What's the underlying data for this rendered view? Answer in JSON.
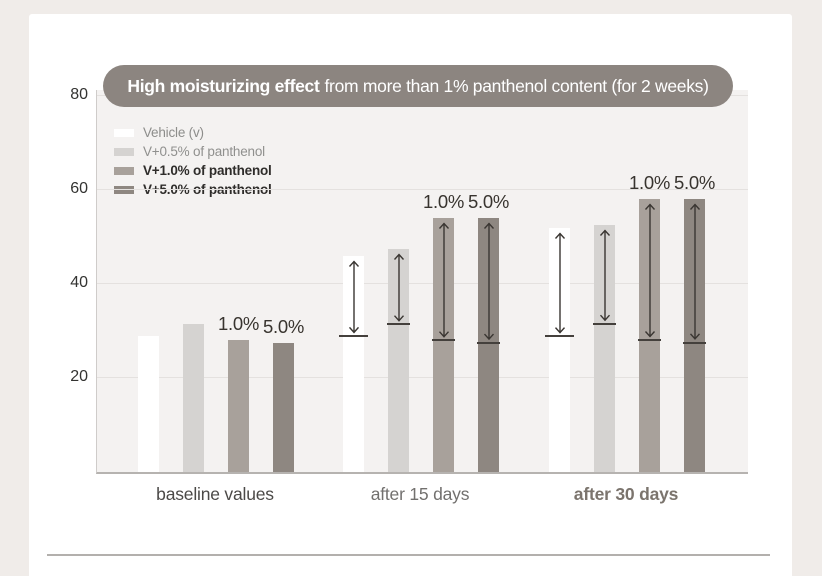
{
  "page": {
    "background": "#f0ece9",
    "card_background": "#ffffff",
    "divider_color": "#b3b0ad"
  },
  "chart_data": {
    "type": "bar",
    "title_highlight": "High moisturizing effect",
    "title_rest": "from more than 1% panthenol content (for 2 weeks)",
    "title_pill_color": "#8c8580",
    "title_text_color": "#ffffff",
    "plot_background": "#f4f2f1",
    "gridline_color": "#e4e1df",
    "arrow_color": "#3a3632",
    "tick_mark_color": "#44403c",
    "annotation_label_color": "#38342f",
    "categories": [
      "baseline values",
      "after 15 days",
      "after 30 days"
    ],
    "category_styles": [
      {
        "color": "#4b4947",
        "bold": false
      },
      {
        "color": "#72706e",
        "bold": false
      },
      {
        "color": "#7b746d",
        "bold": true
      }
    ],
    "series": [
      {
        "name": "Vehicle (v)",
        "color": "#ffffff",
        "legend_text_color": "#8d8d8b",
        "bold_legend": false,
        "values": [
          29,
          46,
          52
        ]
      },
      {
        "name": "V+0.5% of panthenol",
        "color": "#d5d3d1",
        "legend_text_color": "#90908e",
        "bold_legend": false,
        "values": [
          31.5,
          47.5,
          52.5
        ]
      },
      {
        "name": "V+1.0% of panthenol",
        "color": "#a8a19b",
        "legend_text_color": "#2f2d2b",
        "bold_legend": true,
        "values": [
          28,
          54,
          58
        ]
      },
      {
        "name": "V+5.0% of panthenol",
        "color": "#8e8781",
        "legend_text_color": "#2f2d2b",
        "bold_legend": true,
        "values": [
          27.5,
          54,
          58
        ]
      }
    ],
    "bar_annotations": [
      {
        "series": 2,
        "label": "1.0%"
      },
      {
        "series": 3,
        "label": "5.0%"
      }
    ],
    "change_arrows": {
      "description": "double-headed vertical arrows with a baseline tick mark showing increase from baseline values",
      "applies_to_categories": [
        1,
        2
      ]
    },
    "yticks": [
      20,
      40,
      60,
      80
    ],
    "ylim": [
      0,
      80
    ],
    "xlabel": "",
    "ylabel": "",
    "grid": true,
    "legend_position": "top-left inside plot"
  }
}
